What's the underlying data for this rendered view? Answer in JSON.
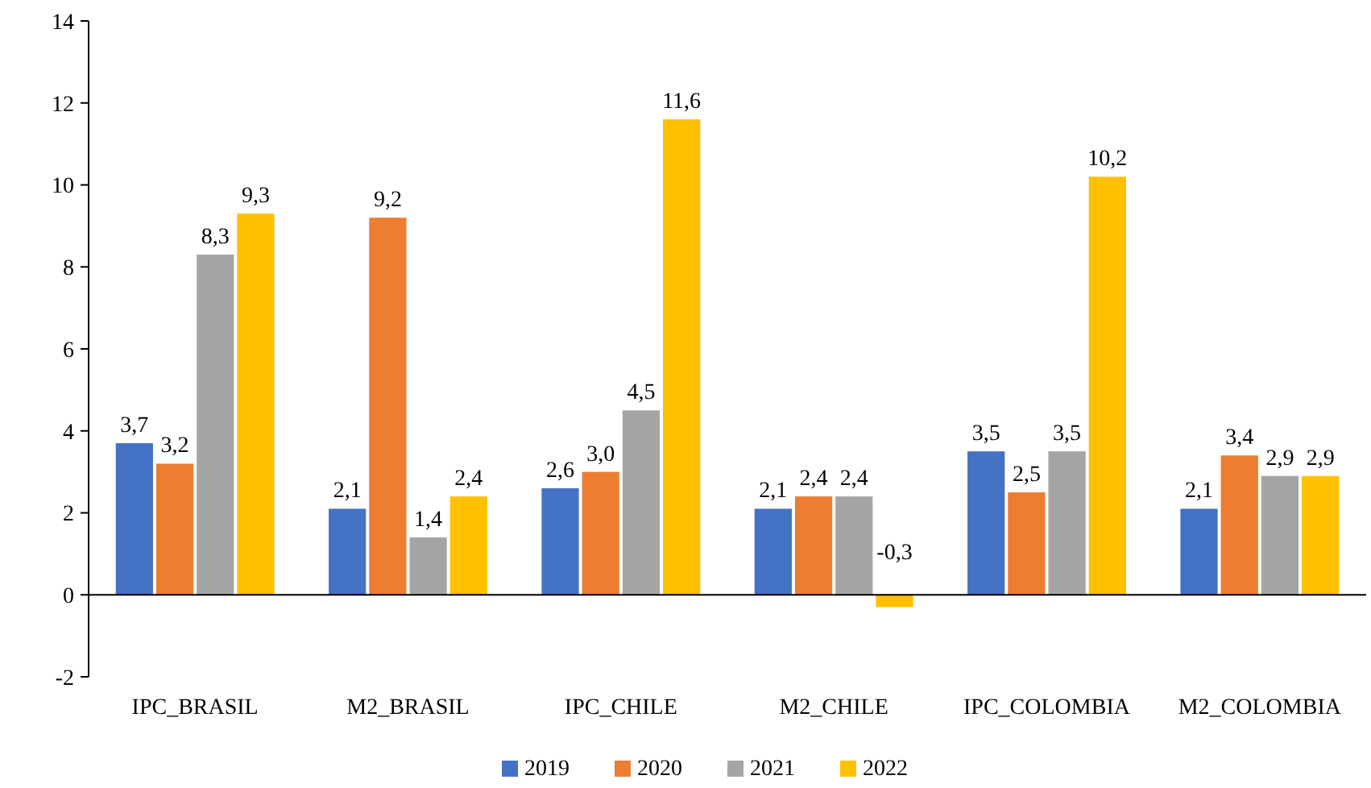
{
  "chart_data": {
    "type": "bar",
    "categories": [
      "IPC_BRASIL",
      "M2_BRASIL",
      "IPC_CHILE",
      "M2_CHILE",
      "IPC_COLOMBIA",
      "M2_COLOMBIA"
    ],
    "series": [
      {
        "name": "2019",
        "color": "#4472c4",
        "values": [
          3.7,
          2.1,
          2.6,
          2.1,
          3.5,
          2.1
        ],
        "value_labels": [
          "3,7",
          "2,1",
          "2,6",
          "2,1",
          "3,5",
          "2,1"
        ]
      },
      {
        "name": "2020",
        "color": "#ed7d31",
        "values": [
          3.2,
          9.2,
          3.0,
          2.4,
          2.5,
          3.4
        ],
        "value_labels": [
          "3,2",
          "9,2",
          "3,0",
          "2,4",
          "2,5",
          "3,4"
        ]
      },
      {
        "name": "2021",
        "color": "#a5a5a5",
        "values": [
          8.3,
          1.4,
          4.5,
          2.4,
          3.5,
          2.9
        ],
        "value_labels": [
          "8,3",
          "1,4",
          "4,5",
          "2,4",
          "3,5",
          "2,9"
        ]
      },
      {
        "name": "2022",
        "color": "#ffc000",
        "values": [
          9.3,
          2.4,
          11.6,
          -0.3,
          10.2,
          2.9
        ],
        "value_labels": [
          "9,3",
          "2,4",
          "11,6",
          "-0,3",
          "10,2",
          "2,9"
        ]
      }
    ],
    "ylim": [
      -2,
      14
    ],
    "yticks": [
      -2,
      0,
      2,
      4,
      6,
      8,
      10,
      12,
      14
    ],
    "legend": "bottom"
  }
}
